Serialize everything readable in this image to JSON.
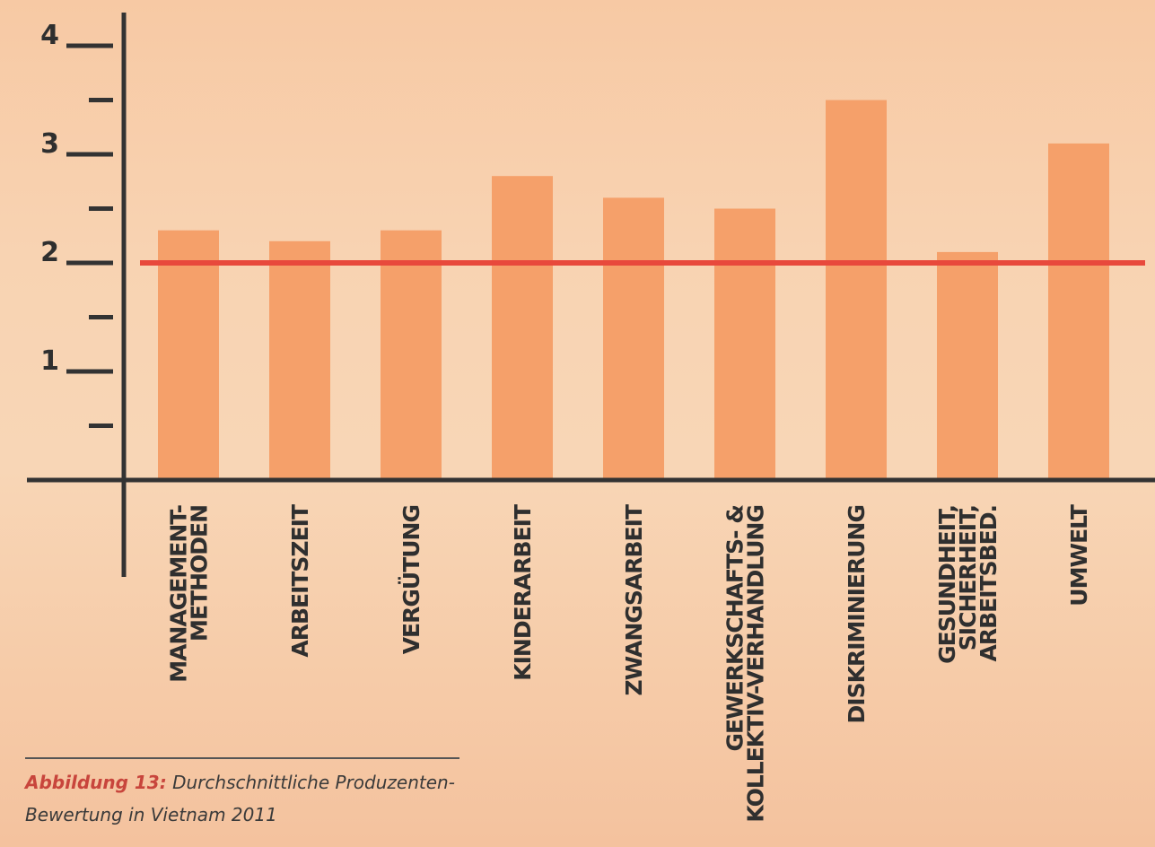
{
  "chart_data": {
    "type": "bar",
    "categories": [
      [
        "MANAGEMENT-",
        "METHODEN"
      ],
      [
        "ARBEITSZEIT"
      ],
      [
        "VERGÜTUNG"
      ],
      [
        "KINDERARBEIT"
      ],
      [
        "ZWANGSARBEIT"
      ],
      [
        "GEWERKSCHAFTS- &",
        "KOLLEKTIV-VERHANDLUNG"
      ],
      [
        "DISKRIMINIERUNG"
      ],
      [
        "GESUNDHEIT,",
        "SICHERHEIT,",
        "ARBEITSBED."
      ],
      [
        "UMWELT"
      ]
    ],
    "values": [
      2.3,
      2.2,
      2.3,
      2.8,
      2.6,
      2.5,
      3.5,
      2.1,
      3.1
    ],
    "reference_line": 2.0,
    "ylim": [
      0,
      4
    ],
    "yticks_major": [
      1,
      2,
      3,
      4
    ],
    "yticks_minor": [
      0.5,
      1.5,
      2.5,
      3.5
    ],
    "bar_color": "#f5a06a",
    "reference_color": "#e8493c",
    "axis_color": "#333333"
  },
  "caption": {
    "label": "Abbildung 13:",
    "text": " Durchschnittliche Produzenten-Bewertung in Vietnam 2011"
  }
}
